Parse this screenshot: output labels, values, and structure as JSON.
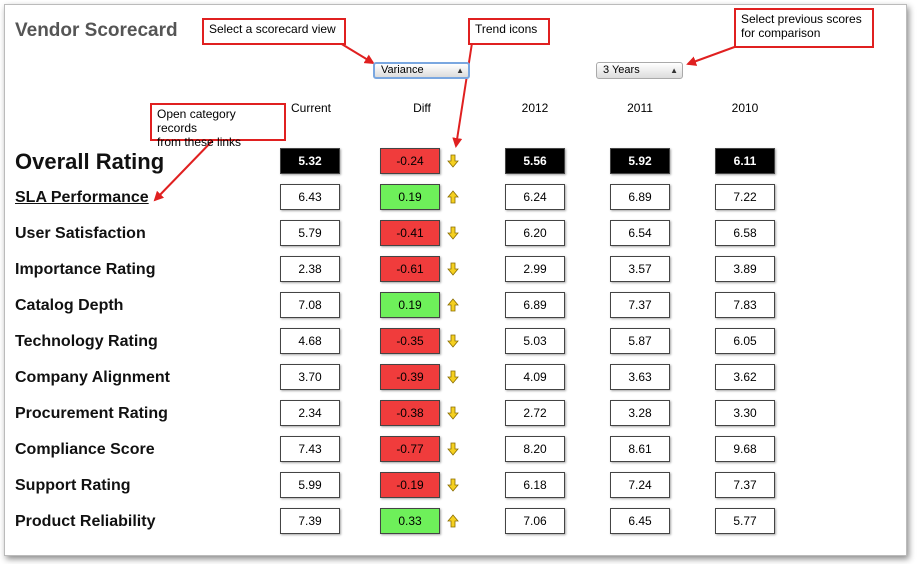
{
  "title": "Vendor Scorecard",
  "callouts": {
    "scorecard_view": "Select a scorecard view",
    "trend_icons": "Trend icons",
    "previous_scores": [
      "Select previous scores",
      "for comparison"
    ],
    "category_links": [
      "Open category records",
      "from these links"
    ]
  },
  "view_select": {
    "value": "Variance"
  },
  "years_select": {
    "value": "3 Years"
  },
  "columns": [
    "Current",
    "Diff",
    "2012",
    "2011",
    "2010"
  ],
  "rows": [
    {
      "label": "Overall Rating",
      "current": "5.32",
      "diff": "-0.24",
      "trend": "down",
      "y2012": "5.56",
      "y2011": "5.92",
      "y2010": "6.11"
    },
    {
      "label": "SLA Performance",
      "current": "6.43",
      "diff": "0.19",
      "trend": "up",
      "y2012": "6.24",
      "y2011": "6.89",
      "y2010": "7.22"
    },
    {
      "label": "User Satisfaction",
      "current": "5.79",
      "diff": "-0.41",
      "trend": "down",
      "y2012": "6.20",
      "y2011": "6.54",
      "y2010": "6.58"
    },
    {
      "label": "Importance Rating",
      "current": "2.38",
      "diff": "-0.61",
      "trend": "down",
      "y2012": "2.99",
      "y2011": "3.57",
      "y2010": "3.89"
    },
    {
      "label": "Catalog Depth",
      "current": "7.08",
      "diff": "0.19",
      "trend": "up",
      "y2012": "6.89",
      "y2011": "7.37",
      "y2010": "7.83"
    },
    {
      "label": "Technology Rating",
      "current": "4.68",
      "diff": "-0.35",
      "trend": "down",
      "y2012": "5.03",
      "y2011": "5.87",
      "y2010": "6.05"
    },
    {
      "label": "Company Alignment",
      "current": "3.70",
      "diff": "-0.39",
      "trend": "down",
      "y2012": "4.09",
      "y2011": "3.63",
      "y2010": "3.62"
    },
    {
      "label": "Procurement Rating",
      "current": "2.34",
      "diff": "-0.38",
      "trend": "down",
      "y2012": "2.72",
      "y2011": "3.28",
      "y2010": "3.30"
    },
    {
      "label": "Compliance Score",
      "current": "7.43",
      "diff": "-0.77",
      "trend": "down",
      "y2012": "8.20",
      "y2011": "8.61",
      "y2010": "9.68"
    },
    {
      "label": "Support Rating",
      "current": "5.99",
      "diff": "-0.19",
      "trend": "down",
      "y2012": "6.18",
      "y2011": "7.24",
      "y2010": "7.37"
    },
    {
      "label": "Product Reliability",
      "current": "7.39",
      "diff": "0.33",
      "trend": "up",
      "y2012": "7.06",
      "y2011": "6.45",
      "y2010": "5.77"
    }
  ],
  "colors": {
    "negative": "#f03c3c",
    "positive": "#6ef05a",
    "callout_border": "#e02020",
    "trend_icon": "#f5d020"
  }
}
